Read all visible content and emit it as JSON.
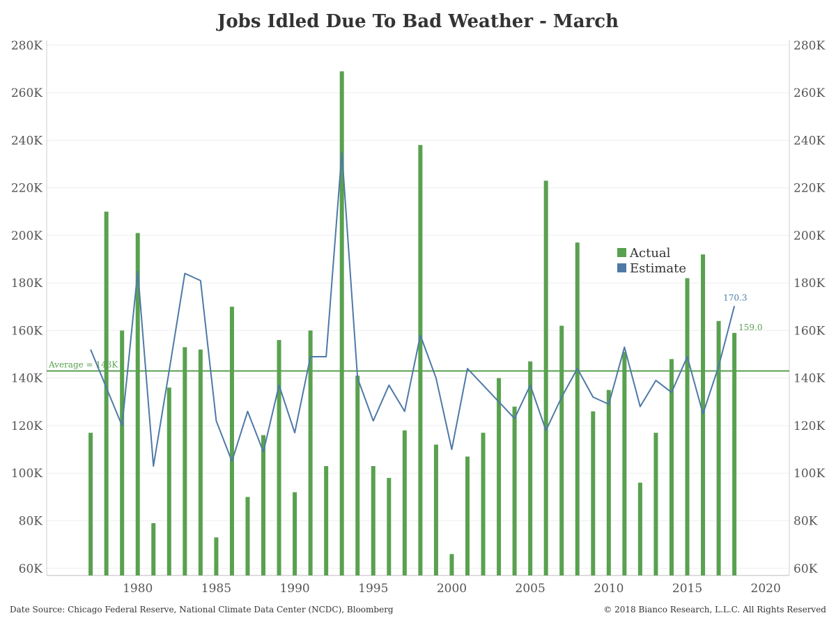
{
  "chart_data": {
    "type": "bar",
    "title": "Jobs Idled Due To Bad Weather - March",
    "xlabel": "",
    "ylabel": "",
    "xlim": [
      1974.2,
      2021.5
    ],
    "ylim": [
      57000,
      282000
    ],
    "y_ticks": [
      60000,
      80000,
      100000,
      120000,
      140000,
      160000,
      180000,
      200000,
      220000,
      240000,
      260000,
      280000
    ],
    "y_tick_labels": [
      "60K",
      "80K",
      "100K",
      "120K",
      "140K",
      "160K",
      "180K",
      "200K",
      "220K",
      "240K",
      "260K",
      "280K"
    ],
    "x_ticks": [
      1980,
      1985,
      1990,
      1995,
      2000,
      2005,
      2010,
      2015,
      2020
    ],
    "x_tick_labels": [
      "1980",
      "1985",
      "1990",
      "1995",
      "2000",
      "2005",
      "2010",
      "2015",
      "2020"
    ],
    "grid": true,
    "legend_position": "right-center",
    "x": [
      1977,
      1978,
      1979,
      1980,
      1981,
      1982,
      1983,
      1984,
      1985,
      1986,
      1987,
      1988,
      1989,
      1990,
      1991,
      1992,
      1993,
      1994,
      1995,
      1996,
      1997,
      1998,
      1999,
      2000,
      2001,
      2002,
      2003,
      2004,
      2005,
      2006,
      2007,
      2008,
      2009,
      2010,
      2011,
      2012,
      2013,
      2014,
      2015,
      2016,
      2017,
      2018
    ],
    "series": [
      {
        "name": "Actual",
        "kind": "bar",
        "color": "#59a14f",
        "values": [
          117000,
          210000,
          160000,
          201000,
          79000,
          136000,
          153000,
          152000,
          73000,
          170000,
          90000,
          116000,
          156000,
          92000,
          160000,
          103000,
          269000,
          141000,
          103000,
          98000,
          118000,
          238000,
          112000,
          66000,
          107000,
          117000,
          140000,
          128000,
          147000,
          223000,
          162000,
          197000,
          126000,
          135000,
          151000,
          96000,
          117000,
          148000,
          182000,
          192000,
          164000,
          159000
        ]
      },
      {
        "name": "Estimate",
        "kind": "line",
        "color": "#4e79a7",
        "values": [
          152000,
          136000,
          120000,
          185000,
          103000,
          143000,
          184000,
          181000,
          122000,
          105000,
          126000,
          109000,
          137000,
          117000,
          149000,
          149000,
          235000,
          140000,
          122000,
          137000,
          126000,
          158000,
          140000,
          110000,
          144000,
          137000,
          130000,
          123000,
          137000,
          118000,
          132000,
          144000,
          132000,
          129000,
          153000,
          128000,
          139000,
          134000,
          149000,
          125000,
          145000,
          170300
        ]
      }
    ],
    "average": {
      "value": 143000,
      "label": "Average = 143K",
      "color": "#59a14f"
    },
    "annotations": [
      {
        "text": "170.3",
        "x": 2018,
        "y": 170300,
        "color": "#4e79a7"
      },
      {
        "text": "159.0",
        "x": 2018,
        "y": 159000,
        "color": "#59a14f"
      }
    ]
  },
  "footer": {
    "source": "Date Source: Chicago Federal Reserve, National Climate Data Center (NCDC), Bloomberg",
    "copyright": "© 2018 Bianco Research, L.L.C. All Rights Reserved"
  }
}
